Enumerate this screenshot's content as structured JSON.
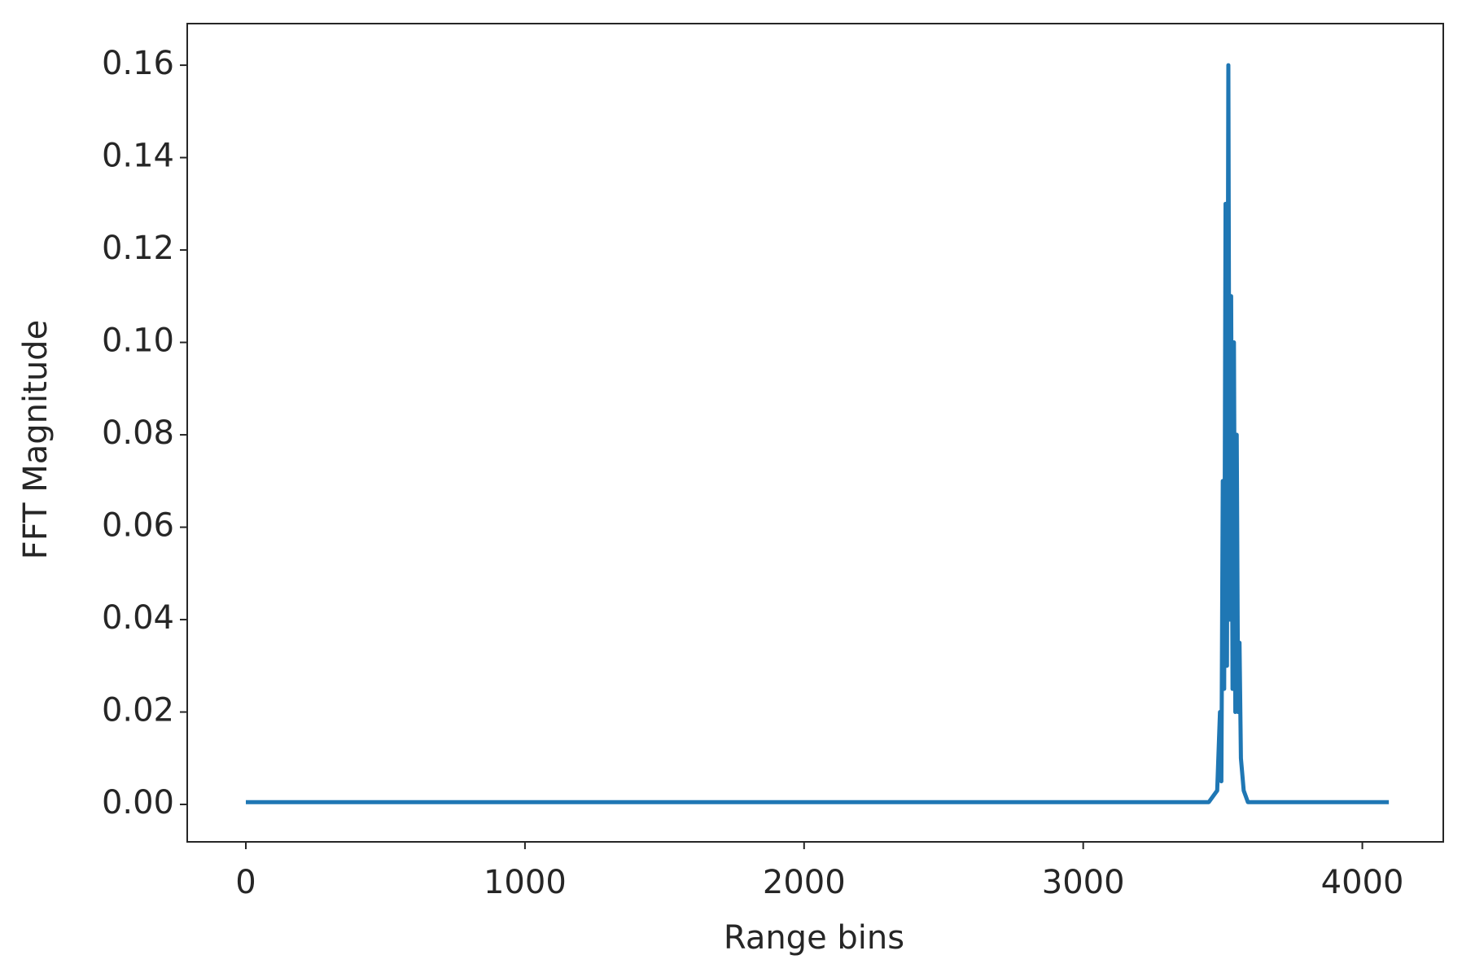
{
  "chart_data": {
    "type": "line",
    "xlabel": "Range bins",
    "ylabel": "FFT Magnitude",
    "series": [
      {
        "color": "#1f77b4",
        "x": [
          0,
          3450,
          3480,
          3490,
          3495,
          3500,
          3505,
          3510,
          3515,
          3520,
          3525,
          3530,
          3535,
          3540,
          3545,
          3550,
          3555,
          3560,
          3565,
          3575,
          3590,
          4095
        ],
        "values": [
          0.0005,
          0.0005,
          0.003,
          0.02,
          0.005,
          0.07,
          0.025,
          0.13,
          0.03,
          0.16,
          0.04,
          0.11,
          0.025,
          0.1,
          0.02,
          0.08,
          0.02,
          0.035,
          0.01,
          0.003,
          0.0005,
          0.0005
        ]
      }
    ],
    "xlim": [
      -210,
      4290
    ],
    "ylim": [
      -0.0081,
      0.169
    ],
    "xticks": [
      0,
      1000,
      2000,
      3000,
      4000
    ],
    "yticks": [
      {
        "value": 0,
        "label": "0.00"
      },
      0.02,
      0.04,
      0.06,
      0.08,
      {
        "value": 0.1,
        "label": "0.10"
      },
      0.12,
      0.14,
      0.16
    ]
  }
}
